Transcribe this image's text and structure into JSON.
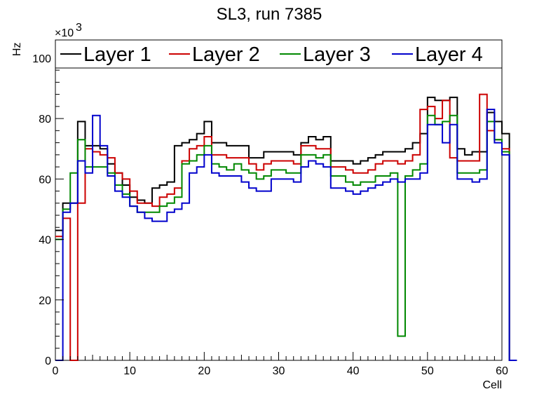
{
  "chart_data": {
    "type": "line",
    "style": "step-histogram",
    "title": "SL3, run 7385",
    "xlabel": "Cell",
    "ylabel": "Hz",
    "y_exponent_label": "×10",
    "y_exponent_power": "3",
    "xlim": [
      0,
      60
    ],
    "ylim": [
      0,
      106
    ],
    "x_ticks": [
      0,
      10,
      20,
      30,
      40,
      50,
      60
    ],
    "x_tick_labels": [
      "0",
      "10",
      "20",
      "30",
      "40",
      "50",
      "60"
    ],
    "y_ticks": [
      0,
      20,
      40,
      60,
      80,
      100
    ],
    "y_tick_labels": [
      "0",
      "20",
      "40",
      "60",
      "80",
      "100"
    ],
    "bin_width": 1,
    "legend_position": "top",
    "grid": false,
    "series": [
      {
        "name": "Layer 1",
        "color": "#000000",
        "values": [
          43,
          52,
          52,
          79,
          71,
          71,
          70,
          65,
          62,
          58,
          54,
          53,
          52,
          57,
          58,
          59,
          71,
          72,
          73,
          75,
          79,
          72,
          72,
          71,
          71,
          71,
          67,
          67,
          69,
          69,
          69,
          69,
          68,
          72,
          74,
          73,
          74,
          66,
          66,
          66,
          65,
          66,
          67,
          68,
          69,
          69,
          69,
          70,
          72,
          75,
          87,
          86,
          86,
          87,
          70,
          68,
          69,
          69,
          82,
          79,
          75,
          0
        ]
      },
      {
        "name": "Layer 2",
        "color": "#cc0000",
        "values": [
          41,
          47,
          0,
          52,
          70,
          69,
          68,
          67,
          62,
          60,
          56,
          52,
          52,
          51,
          54,
          55,
          57,
          66,
          70,
          71,
          74,
          68,
          68,
          67,
          67,
          67,
          65,
          63,
          65,
          66,
          66,
          66,
          65,
          71,
          71,
          70,
          70,
          64,
          64,
          63,
          62,
          62,
          63,
          65,
          66,
          66,
          65,
          66,
          68,
          83,
          84,
          80,
          86,
          67,
          66,
          66,
          66,
          88,
          76,
          73,
          70,
          0
        ]
      },
      {
        "name": "Layer 3",
        "color": "#008800",
        "values": [
          40,
          50,
          62,
          73,
          64,
          64,
          64,
          62,
          58,
          55,
          51,
          49,
          49,
          49,
          51,
          52,
          54,
          65,
          66,
          68,
          71,
          65,
          64,
          63,
          65,
          63,
          62,
          60,
          61,
          63,
          63,
          62,
          62,
          68,
          68,
          67,
          68,
          61,
          61,
          59,
          58,
          59,
          59,
          61,
          61,
          62,
          8,
          61,
          63,
          65,
          81,
          78,
          79,
          81,
          62,
          62,
          62,
          63,
          79,
          73,
          69,
          0
        ]
      },
      {
        "name": "Layer 4",
        "color": "#0000cc",
        "values": [
          0,
          49,
          52,
          66,
          62,
          81,
          71,
          61,
          56,
          54,
          51,
          49,
          47,
          46,
          46,
          49,
          50,
          52,
          62,
          64,
          68,
          62,
          61,
          61,
          61,
          59,
          57,
          56,
          56,
          60,
          60,
          60,
          59,
          64,
          66,
          65,
          64,
          57,
          57,
          56,
          55,
          56,
          57,
          58,
          59,
          60,
          59,
          60,
          60,
          62,
          78,
          78,
          72,
          78,
          60,
          60,
          59,
          60,
          83,
          72,
          68,
          0
        ]
      }
    ]
  }
}
